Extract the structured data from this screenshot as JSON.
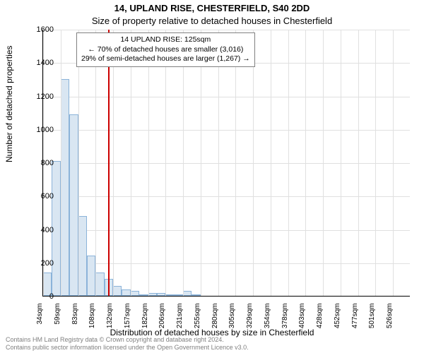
{
  "suptitle": "14, UPLAND RISE, CHESTERFIELD, S40 2DD",
  "title": "Size of property relative to detached houses in Chesterfield",
  "ylabel": "Number of detached properties",
  "xlabel": "Distribution of detached houses by size in Chesterfield",
  "chart": {
    "type": "bar",
    "ymax": 1600,
    "ytick_step": 200,
    "yticks": [
      0,
      200,
      400,
      600,
      800,
      1000,
      1200,
      1400,
      1600
    ],
    "xticks_label_step": 2,
    "bar_count": 42,
    "values": [
      140,
      810,
      1300,
      1090,
      480,
      240,
      140,
      100,
      60,
      40,
      30,
      10,
      15,
      15,
      10,
      5,
      30,
      5,
      0,
      0,
      0,
      0,
      0,
      0,
      0,
      0,
      0,
      0,
      0,
      0,
      0,
      0,
      0,
      0,
      0,
      0,
      0,
      0,
      0,
      0,
      0,
      0
    ],
    "x_start_sqm": 34,
    "x_step_sqm": 12.3,
    "xtick_labels": [
      "34sqm",
      "59sqm",
      "83sqm",
      "108sqm",
      "132sqm",
      "157sqm",
      "182sqm",
      "206sqm",
      "231sqm",
      "255sqm",
      "280sqm",
      "305sqm",
      "329sqm",
      "354sqm",
      "378sqm",
      "403sqm",
      "428sqm",
      "452sqm",
      "477sqm",
      "501sqm",
      "526sqm"
    ],
    "bar_fill": "#d9e6f2",
    "bar_edge": "#8bb3d9",
    "grid_color": "#e0e0e0",
    "background_color": "#ffffff",
    "marker_line_color": "#cc0000",
    "marker_sqm": 125
  },
  "annotation": {
    "line1": "14 UPLAND RISE: 125sqm",
    "line2": "← 70% of detached houses are smaller (3,016)",
    "line3": "29% of semi-detached houses are larger (1,267) →"
  },
  "footer": {
    "line1": "Contains HM Land Registry data © Crown copyright and database right 2024.",
    "line2": "Contains public sector information licensed under the Open Government Licence v3.0."
  }
}
